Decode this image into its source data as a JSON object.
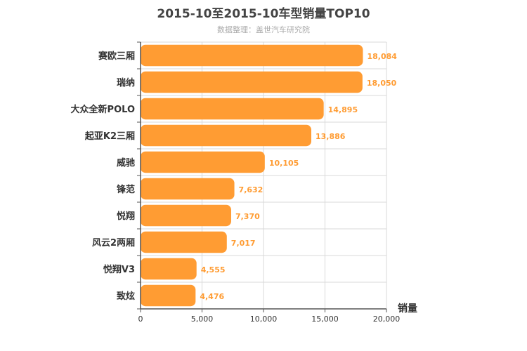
{
  "chart_data": {
    "type": "bar",
    "orientation": "horizontal",
    "title": "2015-10至2015-10车型销量TOP10",
    "subtitle": "数据整理：盖世汽车研究院",
    "xlabel": "销量",
    "ylabel": "",
    "categories": [
      "赛欧三厢",
      "瑞纳",
      "大众全新POLO",
      "起亚K2三厢",
      "威驰",
      "锋范",
      "悦翔",
      "风云2两厢",
      "悦翔V3",
      "致炫"
    ],
    "values": [
      18084,
      18050,
      14895,
      13886,
      10105,
      7632,
      7370,
      7017,
      4555,
      4476
    ],
    "value_labels": [
      "18,084",
      "18,050",
      "14,895",
      "13,886",
      "10,105",
      "7,632",
      "7,370",
      "7,017",
      "4,555",
      "4,476"
    ],
    "xlim": [
      0,
      20000
    ],
    "xticks": [
      0,
      5000,
      10000,
      15000,
      20000
    ],
    "xtick_labels": [
      "0",
      "5,000",
      "10,000",
      "15,000",
      "20,000"
    ],
    "grid": true,
    "legend": "none",
    "bar_color": "#ff9c33",
    "label_color": "#ff9c33"
  }
}
